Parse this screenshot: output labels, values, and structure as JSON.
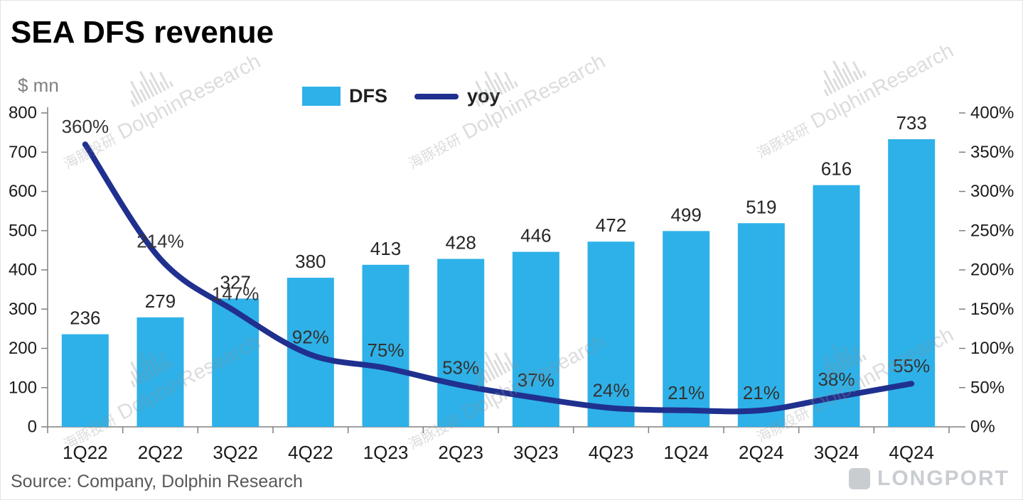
{
  "title": "SEA DFS revenue",
  "unit": "$ mn",
  "source": "Source: Company, Dolphin Research",
  "logo": "LONGPORT",
  "watermark": {
    "text_cn": "海豚投研",
    "text_en": "DolphinResearch"
  },
  "legend": [
    {
      "label": "DFS"
    },
    {
      "label": "yoy"
    }
  ],
  "colors": {
    "bar": "#2EB1E8",
    "line": "#20308F",
    "axis": "#808080",
    "label": "#262626"
  },
  "chart_data": {
    "type": "combo",
    "title": "SEA DFS revenue",
    "categories": [
      "1Q22",
      "2Q22",
      "3Q22",
      "4Q22",
      "1Q23",
      "2Q23",
      "3Q23",
      "4Q23",
      "1Q24",
      "2Q24",
      "3Q24",
      "4Q24"
    ],
    "series": [
      {
        "name": "DFS",
        "type": "bar",
        "axis": "left",
        "unit": "$ mn",
        "values": [
          236,
          279,
          327,
          380,
          413,
          428,
          446,
          472,
          499,
          519,
          616,
          733
        ]
      },
      {
        "name": "yoy",
        "type": "line",
        "axis": "right",
        "unit": "%",
        "values": [
          360,
          214,
          147,
          92,
          75,
          53,
          37,
          24,
          21,
          21,
          38,
          55
        ]
      }
    ],
    "bar_labels": [
      "236",
      "279",
      "327",
      "380",
      "413",
      "428",
      "446",
      "472",
      "499",
      "519",
      "616",
      "733"
    ],
    "line_labels": [
      "360%",
      "214%",
      "147%",
      "92%",
      "75%",
      "53%",
      "37%",
      "24%",
      "21%",
      "21%",
      "38%",
      "55%"
    ],
    "left_axis": {
      "label": "$ mn",
      "min": 0,
      "max": 800,
      "step": 100,
      "ticks": [
        "800",
        "700",
        "600",
        "500",
        "400",
        "300",
        "200",
        "100",
        "0"
      ]
    },
    "right_axis": {
      "min": 0,
      "max": 400,
      "step": 50,
      "ticks": [
        "400%",
        "350%",
        "300%",
        "250%",
        "200%",
        "150%",
        "100%",
        "50%",
        "0%"
      ]
    },
    "legend_position": "top",
    "grid": false
  }
}
